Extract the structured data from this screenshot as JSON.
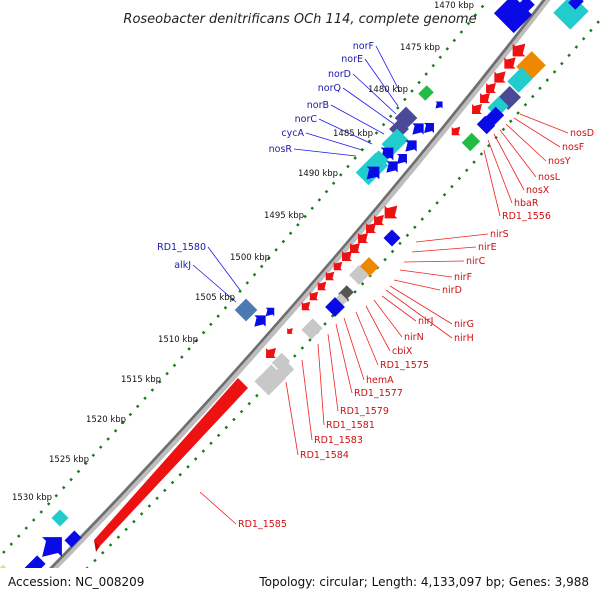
{
  "title": "Roseobacter denitrificans OCh 114, complete genome",
  "footer": {
    "accession": "Accession: NC_008209",
    "summary": "Topology: circular; Length: 4,133,097 bp; Genes: 3,988"
  },
  "colors": {
    "forward_gene": "#0a0ae6",
    "reverse_gene": "#ee1111",
    "blue_label": "#1a1aaa",
    "red_label": "#cc1111",
    "ruler": "#1a7a1a",
    "backbone": "#7a7a7a"
  },
  "ruler": {
    "ticks": [
      "1470 kbp",
      "1475 kbp",
      "1480 kbp",
      "1485 kbp",
      "1490 kbp",
      "1495 kbp",
      "1500 kbp",
      "1505 kbp",
      "1510 kbp",
      "1515 kbp",
      "1520 kbp",
      "1525 kbp",
      "1530 kbp"
    ]
  },
  "genes_blue": [
    "norF",
    "norE",
    "norD",
    "norQ",
    "norB",
    "norC",
    "cycA",
    "nosR",
    "RD1_1580",
    "alkJ"
  ],
  "genes_red": [
    "nosD",
    "nosF",
    "nosY",
    "nosL",
    "nosX",
    "hbaR",
    "RD1_1556",
    "nirS",
    "nirE",
    "nirC",
    "nirF",
    "nirD",
    "nirG",
    "nirH",
    "nirJ",
    "nirN",
    "cbiX",
    "RD1_1575",
    "hemA",
    "RD1_1577",
    "RD1_1579",
    "RD1_1581",
    "RD1_1583",
    "RD1_1584",
    "RD1_1585"
  ]
}
